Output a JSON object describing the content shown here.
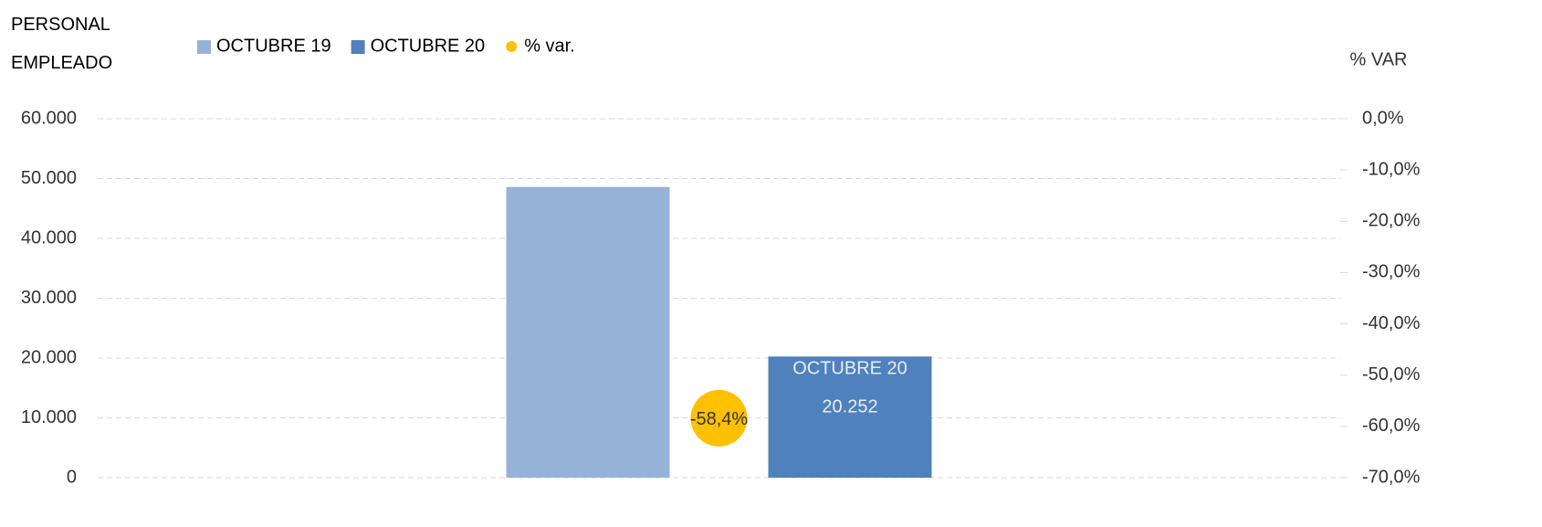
{
  "chart_data": {
    "type": "bar",
    "title": "PERSONAL EMPLEADO",
    "y2_label": "% VAR",
    "categories": [
      null
    ],
    "series": [
      {
        "name": "OCTUBRE 19",
        "color": "#95b3d7",
        "values": [
          48600
        ]
      },
      {
        "name": "OCTUBRE 20",
        "color": "#4f81bd",
        "values": [
          20252
        ],
        "value_labels": [
          "20.252"
        ]
      },
      {
        "name": "% var.",
        "color": "#ffc000",
        "type": "scatter",
        "axis": "y2",
        "values": [
          -58.4
        ],
        "value_labels": [
          "-58,4%"
        ]
      }
    ],
    "ylim": [
      0,
      60000
    ],
    "yticks": [
      0,
      {
        "value": 10000,
        "label": "10.000"
      },
      {
        "value": 20000,
        "label": "20.000"
      },
      {
        "value": 30000,
        "label": "30.000"
      },
      {
        "value": 40000,
        "label": "40.000"
      },
      {
        "value": 50000,
        "label": "50.000"
      },
      {
        "value": 60000,
        "label": "60.000"
      }
    ],
    "y2lim": [
      -70,
      0
    ],
    "y2ticks": [
      {
        "value": 0,
        "label": "0,0%"
      },
      {
        "value": -10,
        "label": "-10,0%"
      },
      {
        "value": -20,
        "label": "-20,0%"
      },
      {
        "value": -30,
        "label": "-30,0%"
      },
      {
        "value": -40,
        "label": "-40,0%"
      },
      {
        "value": -50,
        "label": "-50,0%"
      },
      {
        "value": -60,
        "label": "-60,0%"
      },
      {
        "value": -70,
        "label": "-70,0%"
      }
    ],
    "grid": true
  }
}
